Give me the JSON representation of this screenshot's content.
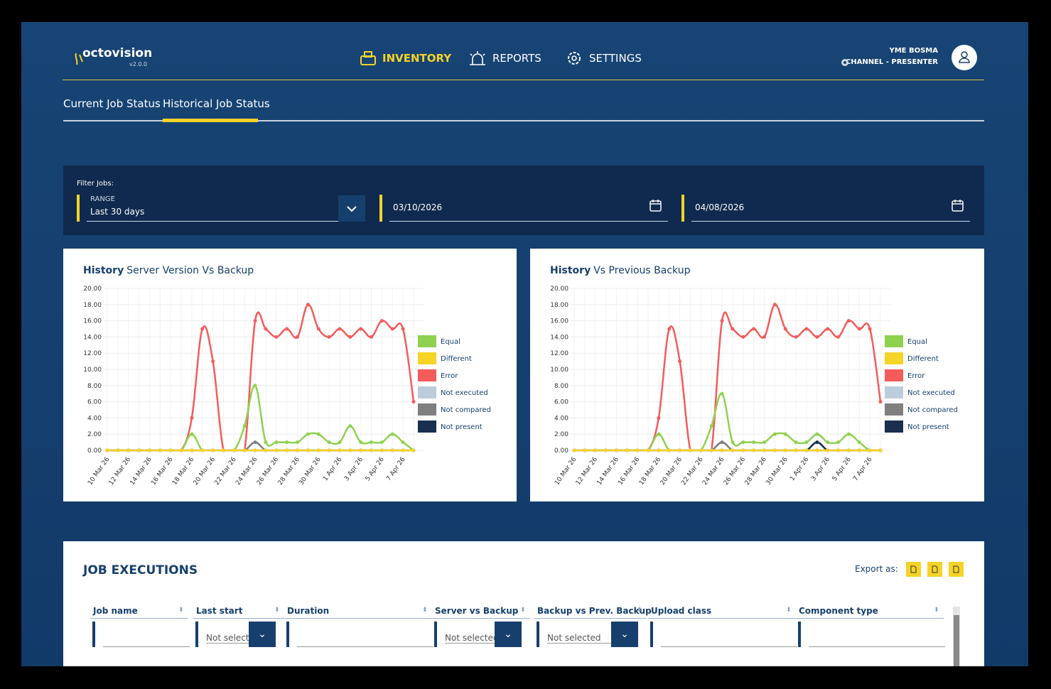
{
  "header": {
    "brand": "octovision",
    "version": "v2.0.0",
    "nav": [
      "INVENTORY",
      "REPORTS",
      "SETTINGS"
    ],
    "user": "YME BOSMA",
    "role": "CHANNEL - PRESENTER"
  },
  "tabs": [
    "Current Job Status",
    "Historical Job Status"
  ],
  "filter": {
    "label": "Filter Jobs:",
    "range_label": "RANGE",
    "range": "Last 30 days",
    "from": "03/10/2026",
    "to": "04/08/2026"
  },
  "chart_data": [
    {
      "type": "line",
      "title_bold": "History",
      "title": "Server Version Vs Backup",
      "categories": [
        "10 Mar 26",
        null,
        "12 Mar 26",
        null,
        "14 Mar 26",
        null,
        "16 Mar 26",
        null,
        "18 Mar 26",
        null,
        "20 Mar 26",
        null,
        "22 Mar 26",
        null,
        "24 Mar 26",
        null,
        "26 Mar 26",
        null,
        "28 Mar 26",
        null,
        "30 Mar 26",
        null,
        "1 Apr 26",
        null,
        "3 Apr 26",
        null,
        "5 Apr 26",
        null,
        "7 Apr 26",
        null
      ],
      "ylim": [
        0,
        20
      ],
      "yticks": [
        {
          "value": 0,
          "label": "0.00"
        },
        {
          "value": 2,
          "label": "2.00"
        },
        {
          "value": 4,
          "label": "4.00"
        },
        {
          "value": 6,
          "label": "6.00"
        },
        {
          "value": 8,
          "label": "8.00"
        },
        {
          "value": 10,
          "label": "10.00"
        },
        {
          "value": 12,
          "label": "12.00"
        },
        {
          "value": 14,
          "label": "14.00"
        },
        {
          "value": 16,
          "label": "16.00"
        },
        {
          "value": 18,
          "label": "18.00"
        },
        {
          "value": 20,
          "label": "20.00"
        }
      ],
      "grid": true,
      "series": [
        {
          "name": "Equal",
          "color": "#8fd14f",
          "values": [
            0,
            0,
            0,
            0,
            0,
            0,
            0,
            0,
            2,
            0,
            0,
            0,
            0,
            3,
            8,
            1,
            1,
            1,
            1,
            2,
            2,
            1,
            1,
            3,
            1,
            1,
            1,
            2,
            1,
            0
          ]
        },
        {
          "name": "Different",
          "color": "#f5d327",
          "values": [
            0,
            0,
            0,
            0,
            0,
            0,
            0,
            0,
            0,
            0,
            0,
            0,
            0,
            0,
            0,
            0,
            0,
            0,
            0,
            0,
            0,
            0,
            0,
            0,
            0,
            0,
            0,
            0,
            0,
            0
          ]
        },
        {
          "name": "Error",
          "color": "#f45b5b",
          "values": [
            0,
            0,
            0,
            0,
            0,
            0,
            0,
            0,
            4,
            15,
            11,
            0,
            0,
            0,
            16,
            15,
            14,
            15,
            14,
            18,
            15,
            14,
            15,
            14,
            15,
            14,
            16,
            15,
            15,
            6
          ]
        },
        {
          "name": "Not executed",
          "color": "#bcccdc",
          "values": [
            0,
            0,
            0,
            0,
            0,
            0,
            0,
            0,
            0,
            0,
            0,
            0,
            0,
            0,
            0,
            0,
            0,
            0,
            0,
            0,
            0,
            0,
            0,
            0,
            0,
            0,
            0,
            0,
            0,
            0
          ]
        },
        {
          "name": "Not compared",
          "color": "#7f7f7f",
          "values": [
            0,
            0,
            0,
            0,
            0,
            0,
            0,
            0,
            0,
            0,
            0,
            0,
            0,
            0,
            1,
            0,
            0,
            0,
            0,
            0,
            0,
            0,
            0,
            0,
            0,
            0,
            0,
            0,
            0,
            0
          ]
        },
        {
          "name": "Not present",
          "color": "#1a2f50",
          "values": [
            0,
            0,
            0,
            0,
            0,
            0,
            0,
            0,
            0,
            0,
            0,
            0,
            0,
            0,
            0,
            0,
            0,
            0,
            0,
            0,
            0,
            0,
            0,
            0,
            0,
            0,
            0,
            0,
            0,
            0
          ]
        }
      ]
    },
    {
      "type": "line",
      "title_bold": "History",
      "title": "Vs Previous Backup",
      "categories": [
        "10 Mar 26",
        null,
        "12 Mar 26",
        null,
        "14 Mar 26",
        null,
        "16 Mar 26",
        null,
        "18 Mar 26",
        null,
        "20 Mar 26",
        null,
        "22 Mar 26",
        null,
        "24 Mar 26",
        null,
        "26 Mar 26",
        null,
        "28 Mar 26",
        null,
        "30 Mar 26",
        null,
        "1 Apr 26",
        null,
        "3 Apr 26",
        null,
        "5 Apr 26",
        null,
        "7 Apr 26",
        null
      ],
      "ylim": [
        0,
        20
      ],
      "yticks": [
        {
          "value": 0,
          "label": "0.00"
        },
        {
          "value": 2,
          "label": "2.00"
        },
        {
          "value": 4,
          "label": "4.00"
        },
        {
          "value": 6,
          "label": "6.00"
        },
        {
          "value": 8,
          "label": "8.00"
        },
        {
          "value": 10,
          "label": "10.00"
        },
        {
          "value": 12,
          "label": "12.00"
        },
        {
          "value": 14,
          "label": "14.00"
        },
        {
          "value": 16,
          "label": "16.00"
        },
        {
          "value": 18,
          "label": "18.00"
        },
        {
          "value": 20,
          "label": "20.00"
        }
      ],
      "grid": true,
      "series": [
        {
          "name": "Equal",
          "color": "#8fd14f",
          "values": [
            0,
            0,
            0,
            0,
            0,
            0,
            0,
            0,
            2,
            0,
            0,
            0,
            0,
            3,
            7,
            1,
            1,
            1,
            1,
            2,
            2,
            1,
            1,
            2,
            1,
            1,
            2,
            1,
            0,
            0
          ]
        },
        {
          "name": "Different",
          "color": "#f5d327",
          "values": [
            0,
            0,
            0,
            0,
            0,
            0,
            0,
            0,
            0,
            0,
            0,
            0,
            0,
            0,
            0,
            0,
            0,
            0,
            0,
            0,
            0,
            0,
            0,
            0,
            0,
            0,
            0,
            0,
            0,
            0
          ]
        },
        {
          "name": "Error",
          "color": "#f45b5b",
          "values": [
            0,
            0,
            0,
            0,
            0,
            0,
            0,
            0,
            4,
            15,
            11,
            0,
            0,
            0,
            16,
            15,
            14,
            15,
            14,
            18,
            15,
            14,
            15,
            14,
            15,
            14,
            16,
            15,
            15,
            6
          ]
        },
        {
          "name": "Not executed",
          "color": "#bcccdc",
          "values": [
            0,
            0,
            0,
            0,
            0,
            0,
            0,
            0,
            0,
            0,
            0,
            0,
            0,
            0,
            0,
            0,
            0,
            0,
            0,
            0,
            0,
            0,
            0,
            0,
            0,
            0,
            0,
            0,
            0,
            0
          ]
        },
        {
          "name": "Not compared",
          "color": "#7f7f7f",
          "values": [
            0,
            0,
            0,
            0,
            0,
            0,
            0,
            0,
            0,
            0,
            0,
            0,
            0,
            0,
            1,
            0,
            0,
            0,
            0,
            0,
            0,
            0,
            0,
            0,
            0,
            0,
            0,
            0,
            0,
            0
          ]
        },
        {
          "name": "Not present",
          "color": "#1a2f50",
          "values": [
            0,
            0,
            0,
            0,
            0,
            0,
            0,
            0,
            0,
            0,
            0,
            0,
            0,
            0,
            0,
            0,
            0,
            0,
            0,
            0,
            0,
            0,
            0,
            1,
            0,
            0,
            0,
            0,
            0,
            0
          ]
        }
      ]
    }
  ],
  "table": {
    "title": "JOB EXECUTIONS",
    "export_label": "Export as:",
    "columns": [
      "Job name",
      "Last start",
      "Duration",
      "Server vs Backup",
      "Backup vs Prev. Backup",
      "Upload class",
      "Component type"
    ],
    "filter_placeholder": "Not selected"
  }
}
